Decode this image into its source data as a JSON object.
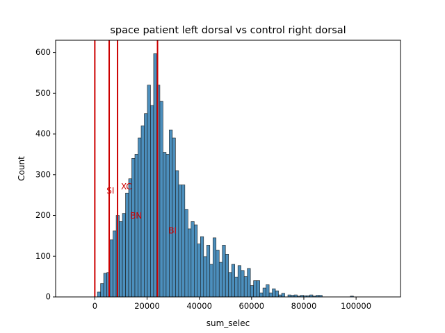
{
  "chart_data": {
    "type": "bar",
    "title": "space patient left dorsal vs control right dorsal",
    "xlabel": "sum_selec",
    "ylabel": "Count",
    "xlim": [
      -15000,
      117000
    ],
    "ylim": [
      0,
      630
    ],
    "x_ticks": [
      0,
      20000,
      40000,
      60000,
      80000,
      100000
    ],
    "x_tick_labels": [
      "0",
      "20000",
      "40000",
      "60000",
      "80000",
      "100000"
    ],
    "y_ticks": [
      0,
      100,
      200,
      300,
      400,
      500,
      600
    ],
    "y_tick_labels": [
      "0",
      "100",
      "200",
      "300",
      "400",
      "500",
      "600"
    ],
    "grid": false,
    "bar_color": "#4c8fbd",
    "bar_edge_color": "#1a1a1a",
    "bin_width": 1195,
    "bin_starts": [
      1000,
      2195,
      3390,
      4585,
      5780,
      6975,
      8170,
      9365,
      10560,
      11755,
      12950,
      14145,
      15340,
      16535,
      17730,
      18925,
      20120,
      21315,
      22510,
      23705,
      24900,
      26095,
      27290,
      28485,
      29680,
      30875,
      32070,
      33265,
      34460,
      35655,
      36850,
      38045,
      39240,
      40435,
      41630,
      42825,
      44020,
      45215,
      46410,
      47605,
      48800,
      49995,
      51190,
      52385,
      53580,
      54775,
      55970,
      57165,
      58360,
      59555,
      60750,
      61945,
      63140,
      64335,
      65530,
      66725,
      67920,
      69115,
      70310,
      71505,
      72700,
      73895,
      75090,
      76285,
      77480,
      78675,
      79870,
      81065,
      82260,
      83455,
      84650,
      85845,
      97800
    ],
    "counts": [
      12,
      33,
      58,
      60,
      140,
      162,
      200,
      185,
      205,
      255,
      290,
      340,
      350,
      390,
      420,
      450,
      520,
      470,
      597,
      520,
      480,
      355,
      350,
      410,
      390,
      310,
      275,
      275,
      215,
      167,
      185,
      177,
      130,
      148,
      99,
      127,
      80,
      145,
      115,
      85,
      127,
      105,
      60,
      80,
      49,
      77,
      65,
      50,
      70,
      28,
      40,
      40,
      10,
      22,
      30,
      10,
      20,
      15,
      5,
      9,
      0,
      5,
      4,
      5,
      2,
      4,
      3,
      3,
      5,
      2,
      4,
      4,
      2
    ],
    "vlines": [
      {
        "x": 0,
        "color": "#cc0000"
      },
      {
        "x": 5500,
        "color": "#cc0000"
      },
      {
        "x": 8700,
        "color": "#cc0000"
      },
      {
        "x": 24000,
        "color": "#cc0000"
      }
    ],
    "annotations": [
      {
        "text": "SI",
        "x": 4500,
        "y": 260,
        "color": "#cc0000"
      },
      {
        "text": "XC",
        "x": 10000,
        "y": 270,
        "color": "#cc0000"
      },
      {
        "text": "BN",
        "x": 13500,
        "y": 198,
        "color": "#cc0000"
      },
      {
        "text": "BI",
        "x": 28200,
        "y": 162,
        "color": "#cc0000"
      }
    ]
  }
}
